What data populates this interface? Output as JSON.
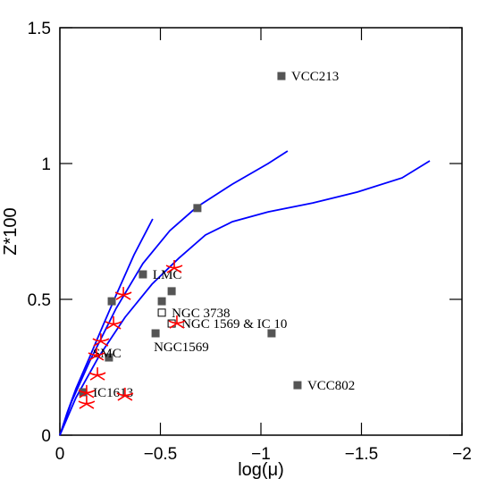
{
  "chart_data": {
    "type": "scatter",
    "x_label": "log(μ)",
    "y_label": "Z*100",
    "xlim": [
      0,
      -2
    ],
    "ylim": [
      0,
      1.5
    ],
    "xticks": [
      0,
      {
        "value": -0.5,
        "label": "−0.5"
      },
      {
        "value": -1,
        "label": "−1"
      },
      {
        "value": -1.5,
        "label": "−1.5"
      },
      {
        "value": -2,
        "label": "−2"
      }
    ],
    "yticks": [
      0,
      0.5,
      1,
      1.5
    ],
    "series": [
      {
        "marker": "filled-square",
        "color": "#555555",
        "x": [
          -1.102,
          -0.684,
          -0.413,
          -0.556,
          -0.507,
          -0.258,
          -0.476,
          -1.053,
          -0.244,
          -0.116,
          -1.182
        ],
        "y": [
          1.322,
          0.836,
          0.592,
          0.53,
          0.493,
          0.493,
          0.375,
          0.375,
          0.286,
          0.158,
          0.184
        ],
        "labels": [
          "VCC213",
          null,
          "LMC",
          null,
          null,
          null,
          "NGC1569",
          null,
          "SMC",
          "IC1613",
          "VCC802"
        ]
      },
      {
        "marker": "open-square",
        "color": "#000000",
        "x": [
          -0.507,
          -0.556
        ],
        "y": [
          0.451,
          0.411
        ],
        "labels": [
          "NGC 3738",
          "NGC 1569 & IC 10"
        ]
      },
      {
        "marker": "tri-star",
        "color": "#ff0000",
        "x": [
          -0.569,
          -0.316,
          -0.582,
          -0.267,
          -0.204,
          -0.182,
          -0.187,
          -0.324,
          -0.133,
          -0.133
        ],
        "y": [
          0.615,
          0.516,
          0.411,
          0.408,
          0.345,
          0.293,
          0.22,
          0.145,
          0.155,
          0.115
        ]
      }
    ],
    "lines": [
      {
        "color": "#0000ff",
        "x": [
          0,
          -0.036,
          -0.08,
          -0.147,
          -0.213,
          -0.28,
          -0.369,
          -0.462
        ],
        "y": [
          0,
          0.082,
          0.171,
          0.286,
          0.401,
          0.516,
          0.664,
          0.796
        ]
      },
      {
        "color": "#0000ff",
        "x": [
          0,
          -0.058,
          -0.147,
          -0.28,
          -0.413,
          -0.547,
          -0.68,
          -0.858,
          -1.036,
          -1.133
        ],
        "y": [
          0,
          0.122,
          0.27,
          0.467,
          0.632,
          0.753,
          0.839,
          0.924,
          1.0,
          1.046
        ]
      },
      {
        "color": "#0000ff",
        "x": [
          0,
          -0.08,
          -0.191,
          -0.324,
          -0.458,
          -0.591,
          -0.724,
          -0.858,
          -1.036,
          -1.258,
          -1.48,
          -1.702,
          -1.84
        ],
        "y": [
          0,
          0.138,
          0.286,
          0.434,
          0.556,
          0.651,
          0.737,
          0.786,
          0.822,
          0.855,
          0.895,
          0.947,
          1.01
        ]
      }
    ]
  }
}
